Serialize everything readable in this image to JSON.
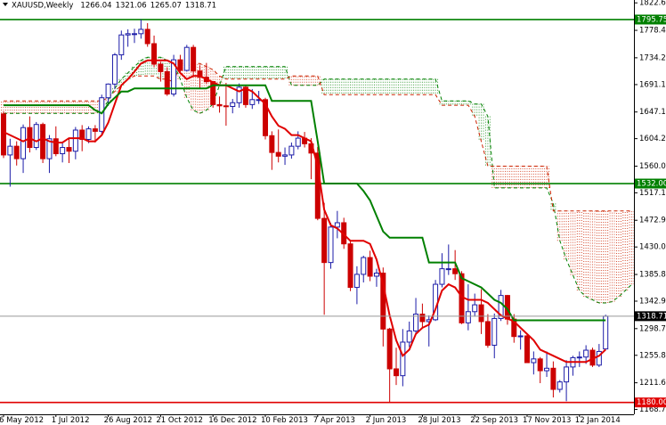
{
  "chart_data": {
    "type": "candlestick",
    "title": "XAUUSD,Weekly",
    "categories": [
      "6 May 2012",
      null,
      null,
      null,
      null,
      null,
      null,
      null,
      "1 Jul 2012",
      null,
      null,
      null,
      null,
      null,
      null,
      null,
      "26 Aug 2012",
      null,
      null,
      null,
      null,
      null,
      null,
      null,
      "21 Oct 2012",
      null,
      null,
      null,
      null,
      null,
      null,
      null,
      "16 Dec 2012",
      null,
      null,
      null,
      null,
      null,
      null,
      null,
      "10 Feb 2013",
      null,
      null,
      null,
      null,
      null,
      null,
      null,
      "7 Apr 2013",
      null,
      null,
      null,
      null,
      null,
      null,
      null,
      "2 Jun 2013",
      null,
      null,
      null,
      null,
      null,
      null,
      null,
      "28 Jul 2013",
      null,
      null,
      null,
      null,
      null,
      null,
      null,
      "22 Sep 2013",
      null,
      null,
      null,
      null,
      null,
      null,
      null,
      "17 Nov 2013",
      null,
      null,
      null,
      null,
      null,
      null,
      null,
      "12 Jan 2014",
      null,
      null,
      null,
      null,
      null,
      null,
      null,
      null
    ],
    "open": [
      1644,
      1578,
      1592,
      1572,
      1622,
      1590,
      1627,
      1572,
      1604,
      1580,
      1590,
      1584,
      1618,
      1603,
      1620,
      1616,
      1670,
      1692,
      1739,
      1771,
      1773,
      1773,
      1780,
      1757,
      1724,
      1712,
      1676,
      1731,
      1714,
      1751,
      1713,
      1703,
      1696,
      1659,
      1657,
      1656,
      1662,
      1687,
      1659,
      1667,
      1667,
      1609,
      1582,
      1576,
      1578,
      1592,
      1605,
      1596,
      1581,
      1476,
      1405,
      1462,
      1469,
      1435,
      1365,
      1386,
      1413,
      1383,
      1388,
      1298,
      1234,
      1223,
      1277,
      1295,
      1322,
      1310,
      1313,
      1370,
      1395,
      1395,
      1387,
      1308,
      1326,
      1337,
      1310,
      1272,
      1315,
      1352,
      1314,
      1286,
      1287,
      1244,
      1250,
      1231,
      1235,
      1201,
      1213,
      1237,
      1252,
      1253,
      1264,
      1240,
      1266.04,
      null,
      null,
      null,
      null
    ],
    "high": [
      1648,
      1604,
      1600,
      1627,
      1640,
      1631,
      1630,
      1610,
      1624,
      1597,
      1605,
      1623,
      1626,
      1624,
      1626,
      1675,
      1693,
      1742,
      1778,
      1780,
      1781,
      1796,
      1790,
      1770,
      1728,
      1719,
      1739,
      1739,
      1755,
      1755,
      1722,
      1726,
      1697,
      1672,
      1694,
      1668,
      1693,
      1690,
      1684,
      1681,
      1670,
      1616,
      1619,
      1590,
      1598,
      1616,
      1615,
      1605,
      1591,
      1501,
      1469,
      1488,
      1477,
      1440,
      1399,
      1416,
      1424,
      1395,
      1397,
      1300,
      1268,
      1298,
      1310,
      1348,
      1339,
      1320,
      1377,
      1420,
      1434,
      1425,
      1391,
      1370,
      1355,
      1362,
      1322,
      1323,
      1361,
      1353,
      1322,
      1296,
      1290,
      1262,
      1253,
      1262,
      1246,
      1216,
      1248,
      1255,
      1262,
      1272,
      1268,
      1274,
      1321.06,
      null,
      null,
      null,
      null
    ],
    "low": [
      1573,
      1527,
      1561,
      1549,
      1582,
      1586,
      1565,
      1549,
      1576,
      1566,
      1565,
      1571,
      1584,
      1597,
      1598,
      1612,
      1657,
      1684,
      1731,
      1752,
      1758,
      1765,
      1752,
      1719,
      1696,
      1673,
      1672,
      1708,
      1712,
      1706,
      1684,
      1692,
      1654,
      1646,
      1625,
      1645,
      1654,
      1654,
      1652,
      1660,
      1603,
      1554,
      1566,
      1562,
      1572,
      1587,
      1590,
      1539,
      1473,
      1321,
      1395,
      1444,
      1427,
      1359,
      1338,
      1373,
      1375,
      1366,
      1270,
      1180,
      1208,
      1206,
      1269,
      1290,
      1300,
      1270,
      1311,
      1365,
      1385,
      1377,
      1306,
      1296,
      1318,
      1290,
      1268,
      1251,
      1311,
      1305,
      1276,
      1265,
      1244,
      1225,
      1211,
      1221,
      1188,
      1196,
      1182,
      1223,
      1237,
      1242,
      1237,
      1237,
      1265.07,
      null,
      null,
      null,
      null
    ],
    "close": [
      1578,
      1592,
      1572,
      1622,
      1590,
      1627,
      1572,
      1604,
      1580,
      1590,
      1584,
      1618,
      1603,
      1620,
      1616,
      1670,
      1692,
      1739,
      1771,
      1773,
      1773,
      1780,
      1757,
      1724,
      1712,
      1676,
      1731,
      1714,
      1751,
      1713,
      1703,
      1696,
      1659,
      1657,
      1656,
      1662,
      1687,
      1659,
      1667,
      1667,
      1609,
      1582,
      1576,
      1578,
      1592,
      1605,
      1596,
      1581,
      1476,
      1405,
      1462,
      1469,
      1435,
      1365,
      1386,
      1413,
      1383,
      1388,
      1298,
      1234,
      1223,
      1277,
      1295,
      1322,
      1310,
      1313,
      1370,
      1395,
      1395,
      1387,
      1308,
      1326,
      1337,
      1310,
      1272,
      1315,
      1352,
      1314,
      1286,
      1287,
      1244,
      1250,
      1231,
      1235,
      1201,
      1213,
      1237,
      1252,
      1253,
      1264,
      1240,
      1262,
      1318.71,
      null,
      null,
      null,
      null
    ],
    "up_color": "#1c1ca8",
    "down_color": "#cc0000",
    "lines": [
      {
        "color": "#e00000",
        "values": [
          1615,
          1610,
          1605,
          1600,
          1605,
          1600,
          1605,
          1600,
          1598,
          1598,
          1605,
          1605,
          1605,
          1600,
          1600,
          1610,
          1630,
          1660,
          1690,
          1700,
          1712,
          1725,
          1730,
          1730,
          1730,
          1730,
          1725,
          1710,
          1700,
          1705,
          1705,
          1700,
          1695,
          1690,
          1690,
          1685,
          1680,
          1685,
          1680,
          1670,
          1660,
          1640,
          1625,
          1620,
          1610,
          1610,
          1605,
          1600,
          1560,
          1490,
          1465,
          1460,
          1450,
          1440,
          1440,
          1440,
          1435,
          1410,
          1370,
          1320,
          1280,
          1255,
          1265,
          1290,
          1300,
          1305,
          1330,
          1360,
          1370,
          1365,
          1350,
          1345,
          1345,
          1345,
          1340,
          1330,
          1320,
          1315,
          1310,
          1300,
          1290,
          1280,
          1265,
          1260,
          1255,
          1250,
          1245,
          1245,
          1245,
          1245,
          1250,
          1255,
          1265,
          null,
          null,
          null,
          null
        ]
      },
      {
        "color": "#008000",
        "values": [
          1658,
          1658,
          1658,
          1658,
          1658,
          1658,
          1658,
          1658,
          1658,
          1658,
          1658,
          1658,
          1658,
          1658,
          1650,
          1645,
          1660,
          1670,
          1680,
          1680,
          1685,
          1685,
          1685,
          1685,
          1685,
          1685,
          1685,
          1685,
          1685,
          1685,
          1685,
          1685,
          1690,
          1690,
          1690,
          1690,
          1690,
          1690,
          1690,
          1690,
          1690,
          1665,
          1665,
          1665,
          1665,
          1665,
          1665,
          1665,
          1600,
          1532,
          1532,
          1532,
          1532,
          1532,
          1532,
          1520,
          1505,
          1480,
          1455,
          1445,
          1445,
          1445,
          1445,
          1445,
          1445,
          1405,
          1405,
          1405,
          1405,
          1405,
          1380,
          1375,
          1370,
          1365,
          1355,
          1345,
          1340,
          1330,
          1312,
          1312,
          1312,
          1312,
          1312,
          1312,
          1312,
          1312,
          1312,
          1312,
          1312,
          1312,
          1312,
          1312,
          1312,
          null,
          null,
          null,
          null
        ]
      }
    ],
    "cloud": {
      "a": {
        "color": "#008000",
        "values": [
          1645,
          1645,
          1645,
          1645,
          1645,
          1645,
          1645,
          1645,
          1645,
          1645,
          1645,
          1645,
          1645,
          1645,
          1645,
          1650,
          1665,
          1685,
          1700,
          1710,
          1720,
          1730,
          1735,
          1735,
          1735,
          1730,
          1725,
          1700,
          1670,
          1650,
          1645,
          1650,
          1660,
          1690,
          1720,
          1720,
          1720,
          1720,
          1720,
          1720,
          1720,
          1720,
          1720,
          1720,
          1690,
          1690,
          1690,
          1690,
          1690,
          1700,
          1700,
          1700,
          1700,
          1700,
          1700,
          1700,
          1700,
          1700,
          1700,
          1700,
          1700,
          1700,
          1700,
          1700,
          1700,
          1700,
          1700,
          1665,
          1665,
          1665,
          1665,
          1665,
          1660,
          1660,
          1640,
          1525,
          1525,
          1525,
          1525,
          1525,
          1525,
          1525,
          1525,
          1525,
          1500,
          1440,
          1410,
          1385,
          1360,
          1350,
          1345,
          1340,
          1340,
          1342,
          1350,
          1360,
          1370
        ]
      },
      "b": {
        "color": "#cc2200",
        "values": [
          1665,
          1665,
          1665,
          1665,
          1665,
          1665,
          1665,
          1665,
          1665,
          1665,
          1665,
          1665,
          1665,
          1665,
          1665,
          1665,
          1670,
          1680,
          1690,
          1700,
          1705,
          1705,
          1705,
          1705,
          1700,
          1700,
          1695,
          1725,
          1725,
          1725,
          1725,
          1720,
          1715,
          1705,
          1700,
          1700,
          1700,
          1700,
          1700,
          1700,
          1700,
          1700,
          1700,
          1700,
          1705,
          1705,
          1705,
          1705,
          1705,
          1675,
          1675,
          1675,
          1675,
          1675,
          1675,
          1675,
          1675,
          1675,
          1675,
          1675,
          1675,
          1675,
          1675,
          1675,
          1675,
          1675,
          1675,
          1658,
          1658,
          1658,
          1658,
          1658,
          1640,
          1600,
          1560,
          1560,
          1560,
          1560,
          1560,
          1560,
          1560,
          1560,
          1560,
          1560,
          1488,
          1488,
          1488,
          1488,
          1488,
          1488,
          1488,
          1488,
          1488,
          1488,
          1488,
          1488,
          1488
        ]
      }
    },
    "hlines": [
      {
        "value": 1795.75,
        "label": "1795.75",
        "color": "#008000"
      },
      {
        "value": 1532,
        "label": "1532.00",
        "color": "#008000"
      },
      {
        "value": 1180,
        "label": "1180.00",
        "color": "#e00000"
      }
    ],
    "ylim": [
      1160.9,
      1827.2
    ],
    "yticks": [
      {
        "value": 1822.6,
        "label": "1822.60"
      },
      {
        "value": 1778.4,
        "label": "1778.40"
      },
      {
        "value": 1734.25,
        "label": "1734.25"
      },
      {
        "value": 1691.15,
        "label": "1691.15"
      },
      {
        "value": 1647.1,
        "label": "1647.10"
      },
      {
        "value": 1604.2,
        "label": "1604.20"
      },
      {
        "value": 1560,
        "label": "1560.00"
      },
      {
        "value": 1517.1,
        "label": "1517.10"
      },
      {
        "value": 1472.95,
        "label": "1472.95"
      },
      {
        "value": 1430,
        "label": "1430.00"
      },
      {
        "value": 1385.8,
        "label": "1385.80"
      },
      {
        "value": 1342.9,
        "label": "1342.90"
      },
      {
        "value": 1298.7,
        "label": "1298.70"
      },
      {
        "value": 1255.8,
        "label": "1255.80"
      },
      {
        "value": 1211.6,
        "label": "1211.60"
      },
      {
        "value": 1168.7,
        "label": "1168.70"
      }
    ]
  }
}
